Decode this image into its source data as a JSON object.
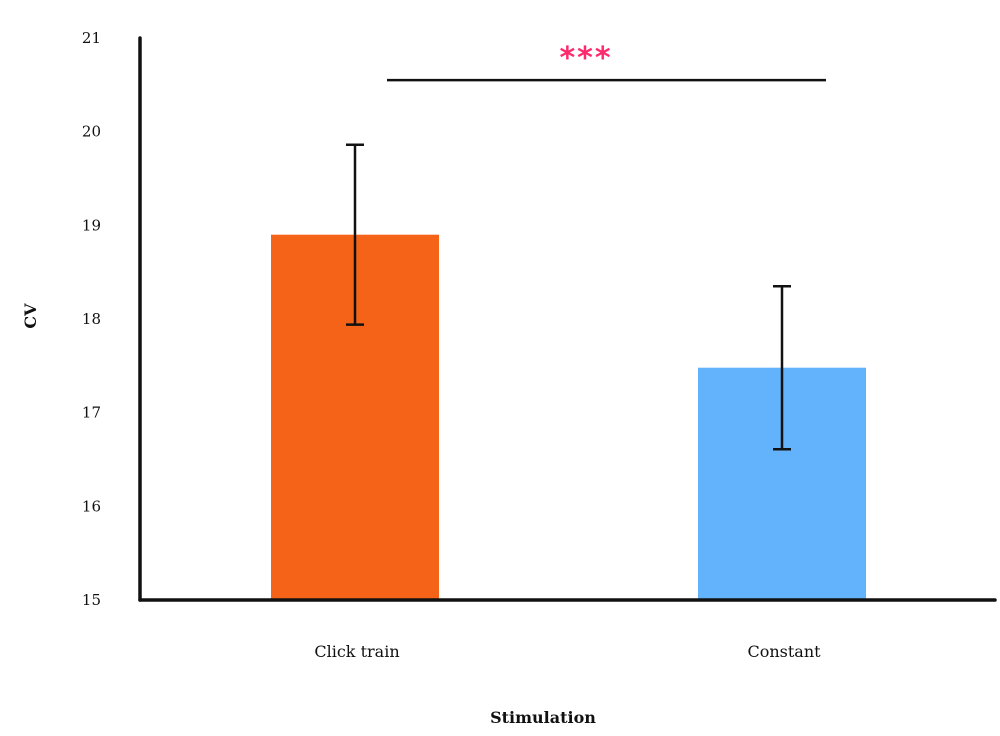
{
  "chart_data": {
    "type": "bar",
    "title": "",
    "xlabel": "Stimulation",
    "ylabel": "CV",
    "ylim": [
      15,
      21
    ],
    "yticks": [
      "15",
      "16",
      "17",
      "18",
      "19",
      "20",
      "21"
    ],
    "grid": false,
    "categories": [
      "Click train",
      "Constant"
    ],
    "values": [
      18.9,
      17.48
    ],
    "error": [
      0.96,
      0.87
    ],
    "colors": [
      "#f46318",
      "#62b3fc"
    ],
    "significance": {
      "between": [
        "Click train",
        "Constant"
      ],
      "label": "***",
      "level": 20.55,
      "color": "#ff2a6d"
    }
  }
}
